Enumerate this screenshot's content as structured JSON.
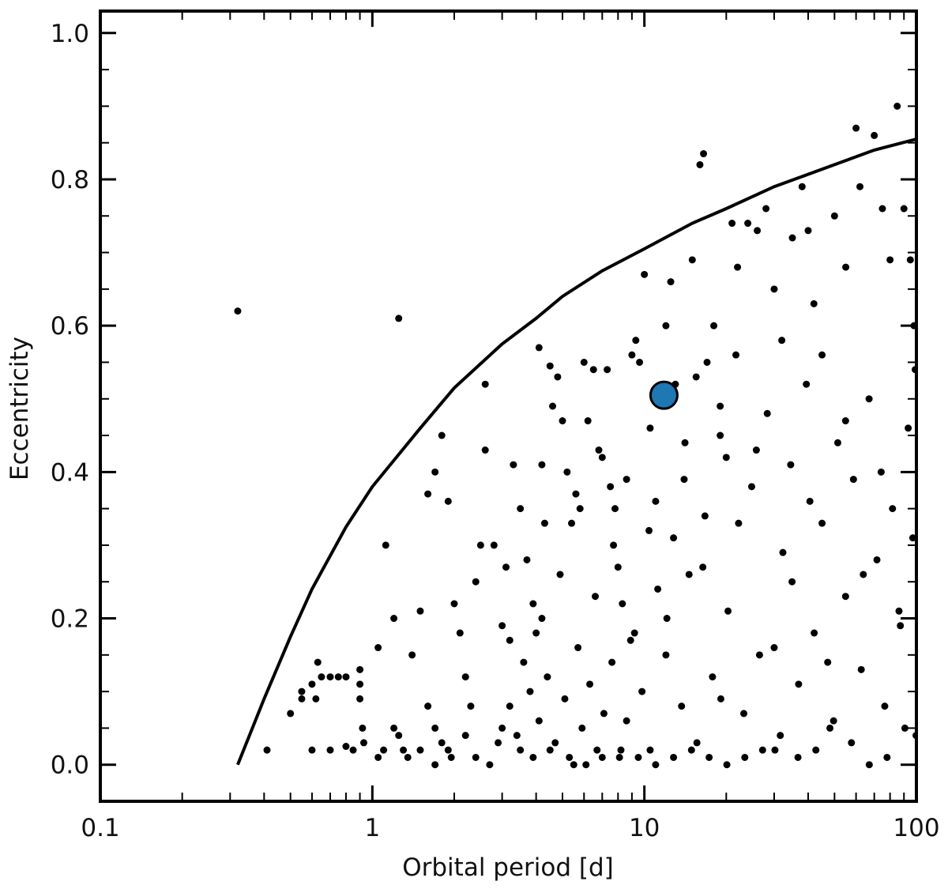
{
  "chart_data": {
    "type": "scatter",
    "title": "",
    "xlabel": "Orbital period [d]",
    "ylabel": "Eccentricity",
    "xscale": "log",
    "xlim": [
      0.1,
      100
    ],
    "ylim": [
      -0.05,
      1.03
    ],
    "grid": false,
    "legend": "none",
    "xticks": [
      {
        "value": 0.1,
        "label": "0.1"
      },
      {
        "value": 1,
        "label": "1"
      },
      {
        "value": 10,
        "label": "10"
      },
      {
        "value": 100,
        "label": "100"
      }
    ],
    "yticks": [
      {
        "value": 0.0,
        "label": "0.0"
      },
      {
        "value": 0.2,
        "label": "0.2"
      },
      {
        "value": 0.4,
        "label": "0.4"
      },
      {
        "value": 0.6,
        "label": "0.6"
      },
      {
        "value": 0.8,
        "label": "0.8"
      },
      {
        "value": 1.0,
        "label": "1.0"
      }
    ],
    "point_color": "#000000",
    "highlight_color": "#1f77b4",
    "envelope_curve": {
      "color": "#000000",
      "points": [
        [
          0.32,
          0.0
        ],
        [
          0.4,
          0.09
        ],
        [
          0.5,
          0.175
        ],
        [
          0.6,
          0.24
        ],
        [
          0.8,
          0.325
        ],
        [
          1.0,
          0.38
        ],
        [
          1.5,
          0.46
        ],
        [
          2.0,
          0.515
        ],
        [
          3.0,
          0.575
        ],
        [
          4.0,
          0.61
        ],
        [
          5.0,
          0.64
        ],
        [
          7.0,
          0.675
        ],
        [
          10.0,
          0.705
        ],
        [
          15.0,
          0.74
        ],
        [
          20.0,
          0.76
        ],
        [
          30.0,
          0.79
        ],
        [
          50.0,
          0.82
        ],
        [
          70.0,
          0.84
        ],
        [
          100.0,
          0.855
        ]
      ]
    },
    "series": [
      {
        "values": [
          [
            0.32,
            0.62
          ],
          [
            1.25,
            0.61
          ],
          [
            1.8,
            0.45
          ],
          [
            2.6,
            0.52
          ],
          [
            4.1,
            0.57
          ],
          [
            4.5,
            0.545
          ],
          [
            0.41,
            0.02
          ],
          [
            0.5,
            0.07
          ],
          [
            0.55,
            0.1
          ],
          [
            0.55,
            0.09
          ],
          [
            0.6,
            0.11
          ],
          [
            0.63,
            0.14
          ],
          [
            0.65,
            0.12
          ],
          [
            0.7,
            0.12
          ],
          [
            0.75,
            0.12
          ],
          [
            0.8,
            0.12
          ],
          [
            0.62,
            0.09
          ],
          [
            0.6,
            0.02
          ],
          [
            0.7,
            0.02
          ],
          [
            0.8,
            0.025
          ],
          [
            0.85,
            0.02
          ],
          [
            0.9,
            0.13
          ],
          [
            0.9,
            0.11
          ],
          [
            0.9,
            0.09
          ],
          [
            0.92,
            0.05
          ],
          [
            0.93,
            0.03
          ],
          [
            1.05,
            0.16
          ],
          [
            1.12,
            0.3
          ],
          [
            1.2,
            0.2
          ],
          [
            1.05,
            0.01
          ],
          [
            1.1,
            0.02
          ],
          [
            1.2,
            0.05
          ],
          [
            1.25,
            0.04
          ],
          [
            1.3,
            0.02
          ],
          [
            1.4,
            0.15
          ],
          [
            1.5,
            0.21
          ],
          [
            1.6,
            0.37
          ],
          [
            1.7,
            0.4
          ],
          [
            1.9,
            0.36
          ],
          [
            1.6,
            0.08
          ],
          [
            1.7,
            0.05
          ],
          [
            1.8,
            0.03
          ],
          [
            1.9,
            0.02
          ],
          [
            2.0,
            0.22
          ],
          [
            2.1,
            0.18
          ],
          [
            2.2,
            0.12
          ],
          [
            2.3,
            0.08
          ],
          [
            2.4,
            0.25
          ],
          [
            2.5,
            0.3
          ],
          [
            2.6,
            0.43
          ],
          [
            2.8,
            0.3
          ],
          [
            3.0,
            0.19
          ],
          [
            3.2,
            0.17
          ],
          [
            3.3,
            0.41
          ],
          [
            3.5,
            0.35
          ],
          [
            3.7,
            0.28
          ],
          [
            3.9,
            0.22
          ],
          [
            4.0,
            0.18
          ],
          [
            4.2,
            0.41
          ],
          [
            4.3,
            0.33
          ],
          [
            4.6,
            0.49
          ],
          [
            4.8,
            0.53
          ],
          [
            5.0,
            0.47
          ],
          [
            5.2,
            0.4
          ],
          [
            5.4,
            0.33
          ],
          [
            5.6,
            0.37
          ],
          [
            5.8,
            0.35
          ],
          [
            6.0,
            0.55
          ],
          [
            6.2,
            0.47
          ],
          [
            6.5,
            0.54
          ],
          [
            6.8,
            0.43
          ],
          [
            7.0,
            0.42
          ],
          [
            7.3,
            0.54
          ],
          [
            7.5,
            0.38
          ],
          [
            7.8,
            0.35
          ],
          [
            8.0,
            0.27
          ],
          [
            8.3,
            0.22
          ],
          [
            8.6,
            0.39
          ],
          [
            9.0,
            0.56
          ],
          [
            9.3,
            0.58
          ],
          [
            9.6,
            0.55
          ],
          [
            10.0,
            0.67
          ],
          [
            10.5,
            0.46
          ],
          [
            11.0,
            0.36
          ],
          [
            12.0,
            0.6
          ],
          [
            12.5,
            0.66
          ],
          [
            13.0,
            0.52
          ],
          [
            14.0,
            0.39
          ],
          [
            15.0,
            0.69
          ],
          [
            15.5,
            0.53
          ],
          [
            16.0,
            0.82
          ],
          [
            16.5,
            0.835
          ],
          [
            17.0,
            0.55
          ],
          [
            18.0,
            0.6
          ],
          [
            19.0,
            0.49
          ],
          [
            20.0,
            0.42
          ],
          [
            21.0,
            0.74
          ],
          [
            22.0,
            0.68
          ],
          [
            24.0,
            0.74
          ],
          [
            26.0,
            0.73
          ],
          [
            28.0,
            0.76
          ],
          [
            30.0,
            0.65
          ],
          [
            32.0,
            0.58
          ],
          [
            35.0,
            0.72
          ],
          [
            38.0,
            0.79
          ],
          [
            40.0,
            0.73
          ],
          [
            42.0,
            0.63
          ],
          [
            45.0,
            0.56
          ],
          [
            50.0,
            0.75
          ],
          [
            55.0,
            0.68
          ],
          [
            60.0,
            0.87
          ],
          [
            62.0,
            0.79
          ],
          [
            70.0,
            0.86
          ],
          [
            75.0,
            0.76
          ],
          [
            80.0,
            0.69
          ],
          [
            85.0,
            0.9
          ],
          [
            90.0,
            0.76
          ],
          [
            95.0,
            0.69
          ],
          [
            98.0,
            0.6
          ],
          [
            99.0,
            0.54
          ],
          [
            2.7,
            0.0
          ],
          [
            3.0,
            0.05
          ],
          [
            3.2,
            0.08
          ],
          [
            3.5,
            0.02
          ],
          [
            3.8,
            0.1
          ],
          [
            4.1,
            0.06
          ],
          [
            4.4,
            0.12
          ],
          [
            4.7,
            0.03
          ],
          [
            5.1,
            0.09
          ],
          [
            5.5,
            0.0
          ],
          [
            5.9,
            0.05
          ],
          [
            6.3,
            0.11
          ],
          [
            6.7,
            0.02
          ],
          [
            7.1,
            0.07
          ],
          [
            7.6,
            0.14
          ],
          [
            8.1,
            0.01
          ],
          [
            8.6,
            0.06
          ],
          [
            9.2,
            0.18
          ],
          [
            9.8,
            0.1
          ],
          [
            10.5,
            0.02
          ],
          [
            11.2,
            0.24
          ],
          [
            12.0,
            0.15
          ],
          [
            12.8,
            0.31
          ],
          [
            13.7,
            0.08
          ],
          [
            14.6,
            0.26
          ],
          [
            15.6,
            0.03
          ],
          [
            16.7,
            0.34
          ],
          [
            17.8,
            0.12
          ],
          [
            19.0,
            0.45
          ],
          [
            20.3,
            0.21
          ],
          [
            21.7,
            0.56
          ],
          [
            23.2,
            0.07
          ],
          [
            24.8,
            0.38
          ],
          [
            26.5,
            0.15
          ],
          [
            28.3,
            0.48
          ],
          [
            30.2,
            0.02
          ],
          [
            32.3,
            0.29
          ],
          [
            34.5,
            0.41
          ],
          [
            36.9,
            0.11
          ],
          [
            39.4,
            0.52
          ],
          [
            42.1,
            0.18
          ],
          [
            45.0,
            0.33
          ],
          [
            48.1,
            0.05
          ],
          [
            51.4,
            0.44
          ],
          [
            54.9,
            0.23
          ],
          [
            58.7,
            0.39
          ],
          [
            62.7,
            0.13
          ],
          [
            67.0,
            0.5
          ],
          [
            71.6,
            0.28
          ],
          [
            76.5,
            0.08
          ],
          [
            81.7,
            0.35
          ],
          [
            87.3,
            0.19
          ],
          [
            93.3,
            0.46
          ],
          [
            99.7,
            0.04
          ],
          [
            3.1,
            0.27
          ],
          [
            3.6,
            0.14
          ],
          [
            4.2,
            0.2
          ],
          [
            4.9,
            0.26
          ],
          [
            5.7,
            0.16
          ],
          [
            6.6,
            0.23
          ],
          [
            7.7,
            0.3
          ],
          [
            8.9,
            0.17
          ],
          [
            10.4,
            0.32
          ],
          [
            12.1,
            0.2
          ],
          [
            14.1,
            0.44
          ],
          [
            16.4,
            0.27
          ],
          [
            19.1,
            0.09
          ],
          [
            22.2,
            0.33
          ],
          [
            25.8,
            0.43
          ],
          [
            30.0,
            0.16
          ],
          [
            34.9,
            0.25
          ],
          [
            40.6,
            0.36
          ],
          [
            47.2,
            0.14
          ],
          [
            54.9,
            0.47
          ],
          [
            63.8,
            0.26
          ],
          [
            74.2,
            0.4
          ],
          [
            86.3,
            0.21
          ],
          [
            97.0,
            0.31
          ],
          [
            2.2,
            0.04
          ],
          [
            2.4,
            0.01
          ],
          [
            2.9,
            0.03
          ],
          [
            3.4,
            0.04
          ],
          [
            3.9,
            0.01
          ],
          [
            4.5,
            0.02
          ],
          [
            5.3,
            0.01
          ],
          [
            6.1,
            0.0
          ],
          [
            7.0,
            0.01
          ],
          [
            8.2,
            0.02
          ],
          [
            9.5,
            0.01
          ],
          [
            11.0,
            0.0
          ],
          [
            12.8,
            0.01
          ],
          [
            14.9,
            0.02
          ],
          [
            17.3,
            0.01
          ],
          [
            20.1,
            0.0
          ],
          [
            23.4,
            0.01
          ],
          [
            27.2,
            0.02
          ],
          [
            31.6,
            0.04
          ],
          [
            36.7,
            0.01
          ],
          [
            42.7,
            0.02
          ],
          [
            49.6,
            0.06
          ],
          [
            57.7,
            0.03
          ],
          [
            67.1,
            0.0
          ],
          [
            78.0,
            0.01
          ],
          [
            90.7,
            0.05
          ],
          [
            1.35,
            0.01
          ],
          [
            1.5,
            0.02
          ],
          [
            1.7,
            0.0
          ],
          [
            1.95,
            0.01
          ]
        ]
      },
      {
        "highlight": true,
        "values": [
          [
            11.8,
            0.505
          ]
        ]
      }
    ]
  }
}
